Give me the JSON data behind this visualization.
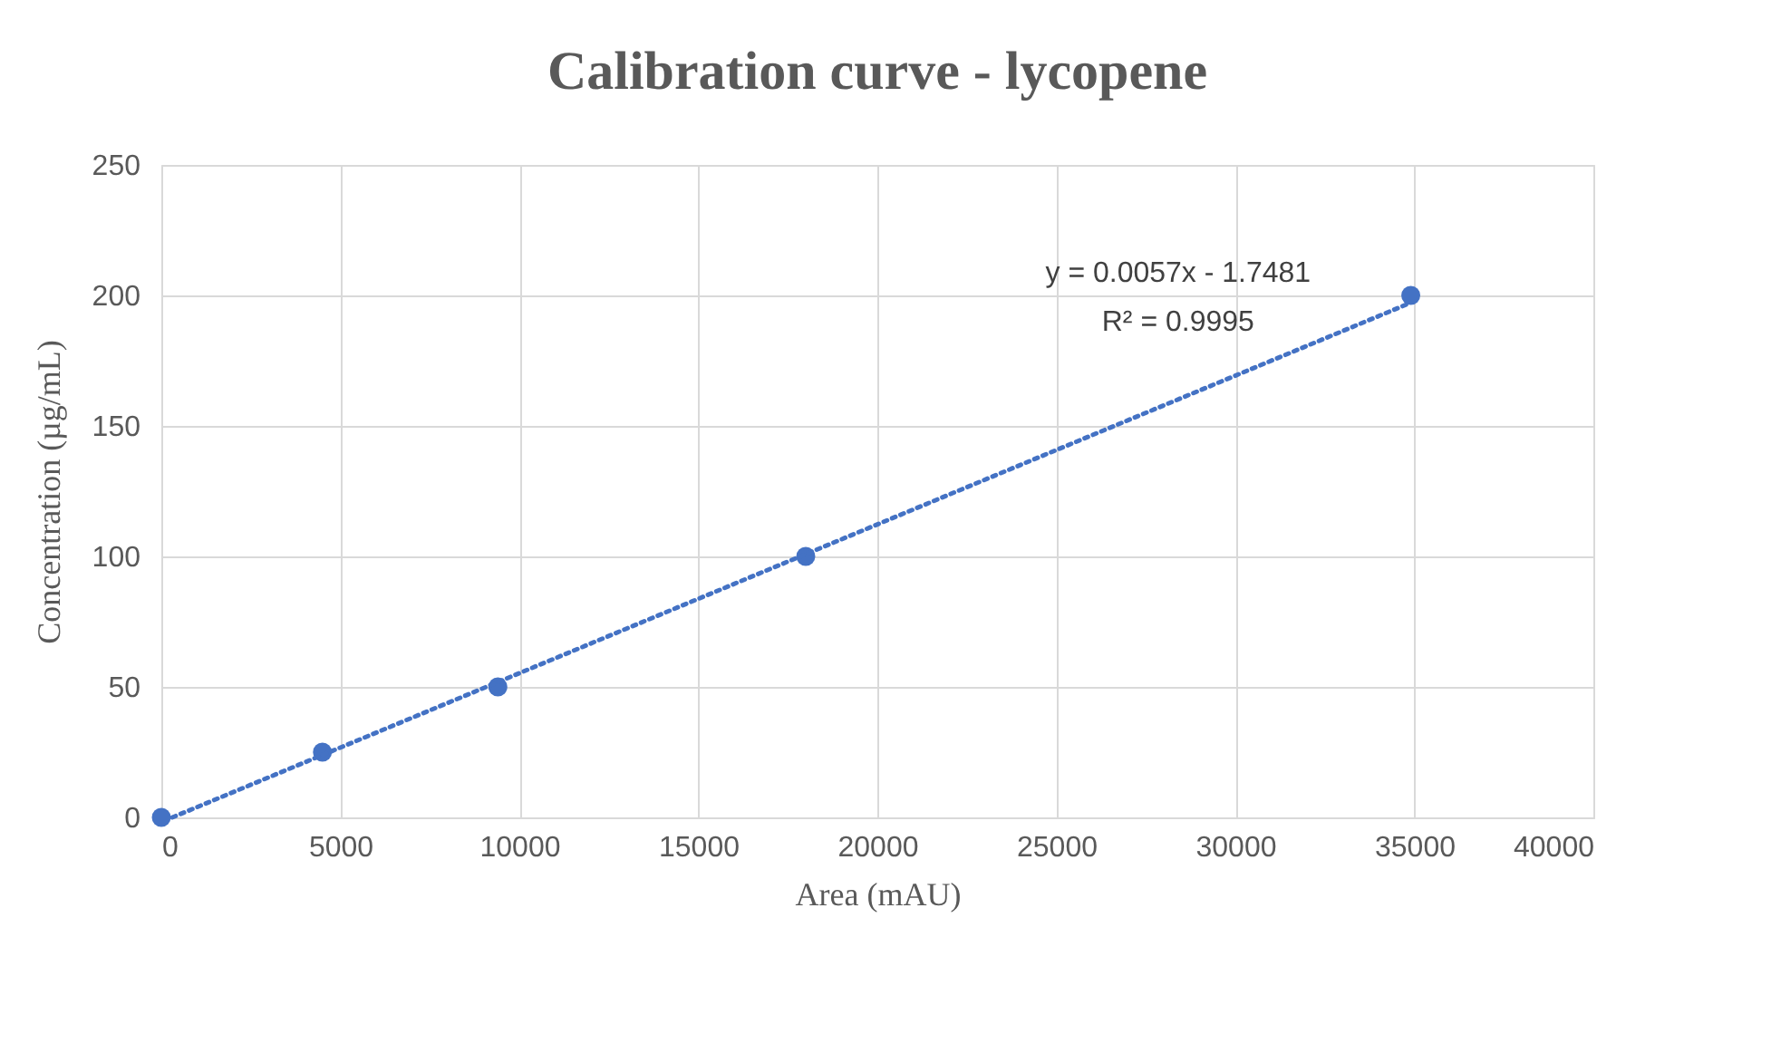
{
  "chart_data": {
    "type": "scatter",
    "title": "Calibration curve - lycopene",
    "xlabel": "Area (mAU)",
    "ylabel": "Concentration (µg/mL)",
    "annotations": [
      "y = 0.0057x - 1.7481",
      "R² = 0.9995"
    ],
    "series": [
      {
        "color": "#4472c4",
        "marker": "circle",
        "x": [
          0,
          4500,
          9400,
          18000,
          34900
        ],
        "values": [
          0,
          25,
          50,
          100,
          200
        ]
      },
      {
        "type": "line",
        "color": "#4472c4",
        "marker": "none",
        "line_style": "dotted",
        "x": [
          307,
          34900
        ],
        "values": [
          0,
          197.2
        ]
      }
    ],
    "xlim": [
      0,
      40000
    ],
    "xticks": [
      0,
      5000,
      10000,
      15000,
      20000,
      25000,
      30000,
      35000,
      40000
    ],
    "ylim": [
      0,
      250
    ],
    "yticks": [
      0,
      50,
      100,
      150,
      200,
      250
    ],
    "grid": true
  }
}
